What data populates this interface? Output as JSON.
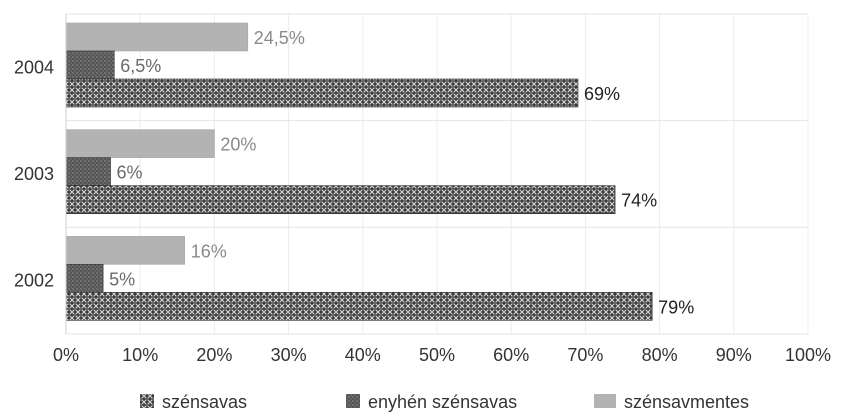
{
  "chart_data": {
    "type": "bar",
    "orientation": "horizontal",
    "categories": [
      "2004",
      "2003",
      "2002"
    ],
    "series": [
      {
        "name": "szénsavmentes",
        "values": [
          24.5,
          20,
          16
        ],
        "labels": [
          "24,5%",
          "20%",
          "16%"
        ],
        "color": "#b3b3b3",
        "pattern": "solid"
      },
      {
        "name": "enyhén szénsavas",
        "values": [
          6.5,
          6,
          5
        ],
        "labels": [
          "6,5%",
          "6%",
          "5%"
        ],
        "color": "#5a5a5a",
        "pattern": "dotted"
      },
      {
        "name": "szénsavas",
        "values": [
          69,
          74,
          79
        ],
        "labels": [
          "69%",
          "74%",
          "79%"
        ],
        "color": "#3a3a3a",
        "pattern": "crosshatch"
      }
    ],
    "xlim": [
      0,
      100
    ],
    "xticks": [
      0,
      10,
      20,
      30,
      40,
      50,
      60,
      70,
      80,
      90,
      100
    ],
    "xtick_labels": [
      "0%",
      "10%",
      "20%",
      "30%",
      "40%",
      "50%",
      "60%",
      "70%",
      "80%",
      "90%",
      "100%"
    ],
    "grid": true,
    "legend_position": "bottom",
    "legend_order": [
      "szénsavas",
      "enyhén szénsavas",
      "szénsavmentes"
    ],
    "title": "",
    "xlabel": "",
    "ylabel": ""
  }
}
